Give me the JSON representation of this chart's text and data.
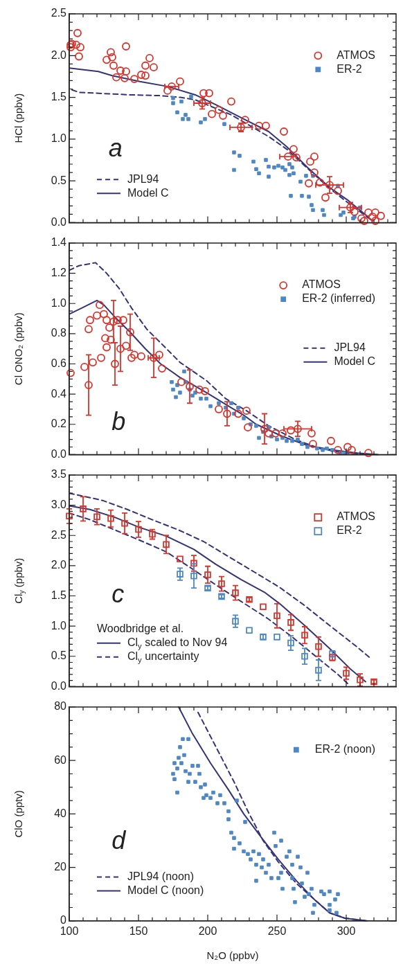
{
  "chart_data": [
    {
      "type": "scatter",
      "ylabel": "HCl (ppbv)",
      "xlim": [
        100,
        336
      ],
      "ylim": [
        0,
        2.5
      ],
      "tick_labels": "y",
      "legend": "bottom left",
      "annotations": [
        "a"
      ],
      "xticks": [
        100,
        {
          "value": 110,
          "label": null
        },
        {
          "value": 120,
          "label": null
        },
        {
          "value": 130,
          "label": null
        },
        {
          "value": 140,
          "label": null
        },
        150,
        {
          "value": 160,
          "label": null
        },
        {
          "value": 170,
          "label": null
        },
        {
          "value": 180,
          "label": null
        },
        {
          "value": 190,
          "label": null
        },
        200,
        {
          "value": 210,
          "label": null
        },
        {
          "value": 220,
          "label": null
        },
        {
          "value": 230,
          "label": null
        },
        {
          "value": 240,
          "label": null
        },
        250,
        {
          "value": 260,
          "label": null
        },
        {
          "value": 270,
          "label": null
        },
        {
          "value": 280,
          "label": null
        },
        {
          "value": 290,
          "label": null
        },
        300,
        {
          "value": 310,
          "label": null
        },
        {
          "value": 320,
          "label": null
        },
        {
          "value": 330,
          "label": null
        }
      ],
      "yticks": [
        {
          "value": 0,
          "label": "0.0"
        },
        {
          "value": 0.1,
          "label": null
        },
        {
          "value": 0.2,
          "label": null
        },
        {
          "value": 0.3,
          "label": null
        },
        {
          "value": 0.4,
          "label": null
        },
        0.5,
        {
          "value": 0.6,
          "label": null
        },
        {
          "value": 0.7,
          "label": null
        },
        {
          "value": 0.8,
          "label": null
        },
        {
          "value": 0.9,
          "label": null
        },
        {
          "value": 1,
          "label": "1.0"
        },
        {
          "value": 1.1,
          "label": null
        },
        {
          "value": 1.2,
          "label": null
        },
        {
          "value": 1.3,
          "label": null
        },
        {
          "value": 1.4,
          "label": null
        },
        1.5,
        {
          "value": 1.6,
          "label": null
        },
        {
          "value": 1.7,
          "label": null
        },
        {
          "value": 1.8,
          "label": null
        },
        {
          "value": 1.9,
          "label": null
        },
        {
          "value": 2,
          "label": "2.0"
        },
        {
          "value": 2.1,
          "label": null
        },
        {
          "value": 2.2,
          "label": null
        },
        {
          "value": 2.3,
          "label": null
        },
        {
          "value": 2.4,
          "label": null
        },
        2.5
      ],
      "series": [
        {
          "name": "ATMOS",
          "type": "scatter",
          "marker": "circle",
          "color": "#d9342b",
          "x": [
            101,
            102,
            106,
            105,
            108,
            107,
            101,
            127,
            130,
            131,
            132,
            134,
            137,
            140,
            141,
            141,
            147,
            152,
            155,
            155,
            158,
            161,
            171,
            174,
            180,
            196,
            197,
            201,
            203,
            208,
            211,
            217,
            224,
            227,
            237,
            242,
            255,
            258,
            262,
            264,
            274,
            277,
            273,
            277,
            281,
            285,
            288,
            294,
            303,
            306,
            311,
            316,
            321,
            321,
            325,
            319,
            313
          ],
          "values": [
            2.13,
            2.14,
            2.27,
            2.13,
            2.1,
            1.99,
            2.1,
            1.95,
            2.04,
            1.98,
            1.88,
            1.74,
            1.82,
            1.73,
            1.81,
            2.11,
            1.72,
            1.77,
            1.88,
            1.76,
            1.97,
            1.86,
            1.58,
            1.63,
            1.69,
            1.43,
            1.55,
            1.55,
            1.3,
            1.35,
            1.28,
            1.45,
            1.14,
            1.23,
            1.16,
            1.16,
            1.09,
            0.79,
            0.88,
            0.78,
            0.73,
            0.79,
            0.47,
            0.6,
            0.48,
            0.3,
            0.45,
            0.38,
            0.18,
            0.13,
            0.05,
            0.12,
            0.12,
            0.02,
            0.08,
            0.07,
            0.02
          ],
          "errors": [
            null,
            null,
            null,
            null,
            null,
            null,
            null,
            null,
            null,
            null,
            null,
            null,
            null,
            null,
            null,
            null,
            null,
            null,
            null,
            null,
            null,
            null,
            null,
            null,
            null,
            0.07,
            null,
            null,
            null,
            null,
            null,
            null,
            0.05,
            null,
            null,
            null,
            null,
            null,
            null,
            null,
            null,
            null,
            null,
            null,
            null,
            null,
            0.1,
            null,
            0.06,
            null,
            null,
            null,
            null,
            null,
            null,
            null,
            null
          ],
          "xerrors": [
            null,
            null,
            null,
            null,
            null,
            null,
            null,
            null,
            null,
            null,
            null,
            null,
            null,
            null,
            null,
            null,
            null,
            null,
            null,
            null,
            null,
            null,
            null,
            5,
            null,
            6,
            null,
            null,
            null,
            null,
            null,
            null,
            8,
            null,
            null,
            null,
            null,
            6,
            null,
            null,
            null,
            null,
            null,
            null,
            null,
            null,
            10,
            null,
            8,
            null,
            null,
            null,
            null,
            null,
            null,
            null,
            null
          ]
        },
        {
          "name": "ER-2",
          "type": "scatter",
          "marker": "square",
          "color": "#4d87c7",
          "x": [
            175,
            175,
            181,
            178,
            184,
            182,
            186,
            188,
            195,
            198,
            212,
            219,
            223,
            219,
            233,
            235,
            237,
            242,
            244,
            244,
            248,
            251,
            254,
            256,
            259,
            261,
            259,
            262,
            260,
            267,
            268,
            271,
            273,
            276,
            275,
            276,
            283,
            284,
            294,
            296,
            298,
            305,
            310,
            306
          ],
          "values": [
            1.49,
            1.43,
            1.45,
            1.32,
            1.29,
            1.24,
            1.24,
            1.51,
            1.2,
            1.24,
            1.18,
            0.84,
            0.8,
            0.63,
            0.73,
            0.64,
            0.59,
            0.75,
            0.55,
            0.67,
            0.66,
            0.68,
            0.66,
            0.63,
            0.7,
            0.66,
            0.57,
            0.59,
            0.32,
            0.49,
            0.32,
            0.56,
            0.31,
            0.56,
            0.21,
            0.15,
            0.15,
            0.09,
            0.44,
            0.09,
            0.12,
            0.05,
            0.18,
            0.07
          ]
        },
        {
          "name": "JPL94",
          "type": "line",
          "line_style": "dashed",
          "color": "#33337a",
          "x": [
            102,
            107,
            144,
            166,
            180,
            191,
            217,
            244,
            257,
            272,
            288,
            301,
            319
          ],
          "values": [
            1.59,
            1.56,
            1.53,
            1.52,
            1.5,
            1.47,
            1.29,
            1.03,
            0.88,
            0.65,
            0.41,
            0.24,
            0.02
          ]
        },
        {
          "name": "Model C",
          "type": "line",
          "line_style": "solid",
          "color": "#33337a",
          "x": [
            100,
            121,
            131,
            151,
            171,
            191,
            206,
            226,
            244,
            257,
            272,
            288,
            301,
            312,
            319
          ],
          "values": [
            1.85,
            1.81,
            1.76,
            1.69,
            1.63,
            1.53,
            1.41,
            1.24,
            1.09,
            0.91,
            0.66,
            0.42,
            0.27,
            0.12,
            0.02
          ]
        }
      ]
    },
    {
      "type": "scatter",
      "ylabel": "Cl ONO₂ (ppbv)",
      "xlim": [
        100,
        336
      ],
      "ylim": [
        0,
        1.4
      ],
      "tick_labels": "y",
      "legend": "right",
      "annotations": [
        "b"
      ],
      "xticks": [
        100,
        {
          "value": 110,
          "label": null
        },
        {
          "value": 120,
          "label": null
        },
        {
          "value": 130,
          "label": null
        },
        {
          "value": 140,
          "label": null
        },
        150,
        {
          "value": 160,
          "label": null
        },
        {
          "value": 170,
          "label": null
        },
        {
          "value": 180,
          "label": null
        },
        {
          "value": 190,
          "label": null
        },
        200,
        {
          "value": 210,
          "label": null
        },
        {
          "value": 220,
          "label": null
        },
        {
          "value": 230,
          "label": null
        },
        {
          "value": 240,
          "label": null
        },
        250,
        {
          "value": 260,
          "label": null
        },
        {
          "value": 270,
          "label": null
        },
        {
          "value": 280,
          "label": null
        },
        {
          "value": 290,
          "label": null
        },
        300,
        {
          "value": 310,
          "label": null
        },
        {
          "value": 320,
          "label": null
        },
        {
          "value": 330,
          "label": null
        }
      ],
      "yticks": [
        {
          "value": 0,
          "label": "0.0"
        },
        {
          "value": 0.05,
          "label": null
        },
        {
          "value": 0.1,
          "label": null
        },
        {
          "value": 0.15,
          "label": null
        },
        0.2,
        {
          "value": 0.25,
          "label": null
        },
        {
          "value": 0.3,
          "label": null
        },
        {
          "value": 0.35,
          "label": null
        },
        0.4,
        {
          "value": 0.45,
          "label": null
        },
        {
          "value": 0.5,
          "label": null
        },
        {
          "value": 0.55,
          "label": null
        },
        0.6,
        {
          "value": 0.65,
          "label": null
        },
        {
          "value": 0.7,
          "label": null
        },
        {
          "value": 0.75,
          "label": null
        },
        0.8,
        {
          "value": 0.85,
          "label": null
        },
        {
          "value": 0.9,
          "label": null
        },
        {
          "value": 0.95,
          "label": null
        },
        {
          "value": 1,
          "label": "1.0"
        },
        {
          "value": 1.05,
          "label": null
        },
        {
          "value": 1.1,
          "label": null
        },
        {
          "value": 1.15,
          "label": null
        },
        1.2,
        {
          "value": 1.25,
          "label": null
        },
        {
          "value": 1.3,
          "label": null
        },
        {
          "value": 1.35,
          "label": null
        },
        1.4
      ],
      "series": [
        {
          "name": "ATMOS",
          "type": "scatter",
          "marker": "circle",
          "color": "#d9342b",
          "x": [
            101,
            111,
            114,
            117,
            114,
            115,
            120,
            122,
            123,
            125,
            127,
            127,
            129,
            126,
            130,
            132,
            133,
            135,
            137,
            139,
            141,
            144,
            145,
            147,
            152,
            161,
            165,
            167,
            181,
            187,
            194,
            198,
            208,
            214,
            222,
            228,
            229,
            241,
            244,
            249,
            254,
            260,
            265,
            275,
            276,
            289,
            294,
            301,
            304,
            316
          ],
          "values": [
            0.54,
            0.58,
            0.46,
            0.61,
            0.83,
            0.89,
            0.92,
            0.99,
            0.64,
            0.93,
            0.89,
            0.71,
            0.84,
            0.77,
            0.76,
            0.88,
            0.6,
            0.89,
            0.7,
            0.89,
            0.72,
            0.81,
            0.64,
            0.66,
            0.65,
            0.64,
            0.66,
            0.57,
            0.48,
            0.45,
            0.43,
            0.42,
            0.3,
            0.27,
            0.27,
            0.29,
            0.18,
            0.17,
            0.14,
            0.14,
            0.14,
            0.16,
            0.17,
            0.14,
            0.07,
            0.09,
            0.03,
            0.05,
            0.03,
            0.01
          ],
          "errors": [
            null,
            null,
            0.2,
            null,
            null,
            null,
            null,
            null,
            null,
            null,
            null,
            null,
            null,
            null,
            null,
            0.14,
            0.14,
            null,
            0.15,
            null,
            null,
            0.12,
            null,
            null,
            null,
            0.13,
            null,
            null,
            null,
            0.11,
            null,
            null,
            null,
            0.08,
            null,
            null,
            null,
            0.1,
            null,
            null,
            null,
            null,
            0.05,
            null,
            null,
            null,
            null,
            null,
            null,
            null
          ],
          "xerrors": [
            null,
            null,
            null,
            null,
            null,
            null,
            null,
            null,
            null,
            null,
            null,
            null,
            null,
            null,
            null,
            null,
            null,
            null,
            null,
            null,
            null,
            null,
            null,
            null,
            null,
            4,
            null,
            null,
            null,
            null,
            null,
            null,
            null,
            null,
            null,
            null,
            null,
            null,
            null,
            null,
            null,
            null,
            10,
            null,
            null,
            null,
            null,
            null,
            null,
            null
          ]
        },
        {
          "name": "ER-2 (inferred)",
          "type": "scatter",
          "marker": "square",
          "color": "#4d87c7",
          "x": [
            174,
            175,
            177,
            178,
            180,
            183,
            184,
            187,
            189,
            191,
            195,
            199,
            202,
            208,
            213,
            217,
            219,
            222,
            226,
            231,
            235,
            237,
            240,
            244,
            246,
            250,
            254,
            257,
            261,
            265,
            268,
            272,
            279,
            283,
            286,
            290,
            296,
            299
          ],
          "values": [
            0.48,
            0.43,
            0.38,
            0.46,
            0.41,
            0.55,
            0.48,
            0.43,
            0.39,
            0.41,
            0.37,
            0.37,
            0.32,
            0.34,
            0.31,
            0.34,
            0.27,
            0.31,
            0.24,
            0.2,
            0.19,
            0.11,
            0.15,
            0.18,
            0.12,
            0.1,
            0.11,
            0.09,
            0.09,
            0.1,
            0.07,
            0.05,
            0.04,
            0.03,
            0.04,
            0.03,
            0.01,
            0.01
          ]
        },
        {
          "name": "JPL94",
          "type": "line",
          "line_style": "dashed",
          "color": "#33337a",
          "x": [
            100,
            107,
            119,
            127,
            136,
            145,
            156,
            167,
            180,
            199,
            213,
            228,
            244,
            263,
            281,
            299,
            321
          ],
          "values": [
            1.22,
            1.25,
            1.27,
            1.2,
            1.1,
            0.97,
            0.83,
            0.73,
            0.61,
            0.49,
            0.37,
            0.29,
            0.19,
            0.1,
            0.04,
            0.01,
            0.0
          ]
        },
        {
          "name": "Model C",
          "type": "line",
          "line_style": "solid",
          "color": "#33337a",
          "x": [
            100,
            109,
            120,
            125,
            134,
            144,
            155,
            166,
            180,
            199,
            217,
            226,
            235,
            254,
            272,
            290,
            308,
            323
          ],
          "values": [
            0.93,
            0.97,
            1.02,
            0.99,
            0.9,
            0.81,
            0.7,
            0.6,
            0.51,
            0.41,
            0.31,
            0.26,
            0.2,
            0.12,
            0.06,
            0.03,
            0.01,
            0.0
          ]
        }
      ]
    },
    {
      "type": "scatter",
      "ylabel": "Cl$_{y}$ (ppbv)",
      "xlim": [
        100,
        336
      ],
      "ylim": [
        0,
        3.5
      ],
      "tick_labels": "y",
      "legend": "bottom left",
      "legend_title": "Woodbridge et al.",
      "annotations": [
        "c"
      ],
      "xticks": [
        100,
        {
          "value": 110,
          "label": null
        },
        {
          "value": 120,
          "label": null
        },
        {
          "value": 130,
          "label": null
        },
        {
          "value": 140,
          "label": null
        },
        150,
        {
          "value": 160,
          "label": null
        },
        {
          "value": 170,
          "label": null
        },
        {
          "value": 180,
          "label": null
        },
        {
          "value": 190,
          "label": null
        },
        200,
        {
          "value": 210,
          "label": null
        },
        {
          "value": 220,
          "label": null
        },
        {
          "value": 230,
          "label": null
        },
        {
          "value": 240,
          "label": null
        },
        250,
        {
          "value": 260,
          "label": null
        },
        {
          "value": 270,
          "label": null
        },
        {
          "value": 280,
          "label": null
        },
        {
          "value": 290,
          "label": null
        },
        300,
        {
          "value": 310,
          "label": null
        },
        {
          "value": 320,
          "label": null
        },
        {
          "value": 330,
          "label": null
        }
      ],
      "yticks": [
        {
          "value": 0,
          "label": "0.0"
        },
        {
          "value": 0.1,
          "label": null
        },
        {
          "value": 0.2,
          "label": null
        },
        {
          "value": 0.3,
          "label": null
        },
        {
          "value": 0.4,
          "label": null
        },
        0.5,
        {
          "value": 0.6,
          "label": null
        },
        {
          "value": 0.7,
          "label": null
        },
        {
          "value": 0.8,
          "label": null
        },
        {
          "value": 0.9,
          "label": null
        },
        {
          "value": 1,
          "label": "1.0"
        },
        {
          "value": 1.1,
          "label": null
        },
        {
          "value": 1.2,
          "label": null
        },
        {
          "value": 1.3,
          "label": null
        },
        {
          "value": 1.4,
          "label": null
        },
        1.5,
        {
          "value": 1.6,
          "label": null
        },
        {
          "value": 1.7,
          "label": null
        },
        {
          "value": 1.8,
          "label": null
        },
        {
          "value": 1.9,
          "label": null
        },
        {
          "value": 2,
          "label": "2.0"
        },
        {
          "value": 2.1,
          "label": null
        },
        {
          "value": 2.2,
          "label": null
        },
        {
          "value": 2.3,
          "label": null
        },
        {
          "value": 2.4,
          "label": null
        },
        2.5,
        {
          "value": 2.6,
          "label": null
        },
        {
          "value": 2.7,
          "label": null
        },
        {
          "value": 2.8,
          "label": null
        },
        {
          "value": 2.9,
          "label": null
        },
        {
          "value": 3,
          "label": "3.0"
        },
        {
          "value": 3.1,
          "label": null
        },
        {
          "value": 3.2,
          "label": null
        },
        {
          "value": 3.3,
          "label": null
        },
        {
          "value": 3.4,
          "label": null
        },
        3.5
      ],
      "series": [
        {
          "name": "ATMOS",
          "type": "scatter",
          "marker": "square",
          "color": "#d9342b",
          "x": [
            100,
            110,
            120,
            130,
            140,
            150,
            160,
            170,
            180,
            190,
            200,
            210,
            220,
            230,
            240,
            250,
            260,
            270,
            280,
            290,
            300,
            310,
            320
          ],
          "values": [
            2.82,
            2.94,
            2.81,
            2.78,
            2.7,
            2.6,
            2.52,
            2.35,
            2.11,
            2.04,
            1.85,
            1.7,
            1.55,
            1.44,
            1.32,
            1.17,
            1.06,
            0.85,
            0.66,
            0.48,
            0.22,
            0.11,
            0.08
          ],
          "errors": [
            0.12,
            0.2,
            0.13,
            0.14,
            0.17,
            0.13,
            0.08,
            0.15,
            null,
            0.13,
            0.14,
            0.12,
            0.12,
            0.03,
            null,
            0.2,
            0.13,
            0.14,
            0.16,
            0.05,
            0.1,
            0.1,
            0.03
          ]
        },
        {
          "name": "ER-2",
          "type": "scatter",
          "marker": "square",
          "color": "#4d87c7",
          "x": [
            180,
            190,
            200,
            210,
            220,
            230,
            240,
            250,
            260,
            270,
            280,
            290
          ],
          "values": [
            1.86,
            1.83,
            1.63,
            1.49,
            1.08,
            0.93,
            0.82,
            0.82,
            0.72,
            0.5,
            0.27,
            0.54
          ],
          "errors": [
            0.1,
            0.2,
            0.03,
            0.03,
            0.1,
            null,
            0.04,
            null,
            0.12,
            0.13,
            0.17,
            0.05
          ]
        },
        {
          "name": "Cl$_{y}$ scaled to Nov 94",
          "type": "line",
          "line_style": "solid",
          "color": "#33337a",
          "x": [
            100,
            115,
            133,
            151,
            170,
            190,
            206,
            224,
            241,
            252,
            270,
            288,
            303,
            314
          ],
          "values": [
            2.99,
            2.93,
            2.8,
            2.63,
            2.49,
            2.27,
            2.02,
            1.77,
            1.56,
            1.37,
            1.01,
            0.63,
            0.29,
            0.08
          ]
        },
        {
          "name": "Cl$_{y}$ uncertainty",
          "type": "line",
          "line_style": "dashed",
          "color": "#33337a",
          "x": [
            100,
            124,
            142,
            160,
            179,
            197,
            215,
            234,
            252,
            270,
            288,
            307,
            318
          ],
          "values": [
            3.2,
            3.08,
            2.93,
            2.76,
            2.59,
            2.4,
            2.15,
            1.89,
            1.64,
            1.34,
            1.01,
            0.67,
            0.46
          ]
        },
        {
          "type": "line",
          "line_style": "dashed",
          "color": "#33337a",
          "x": [
            100,
            115,
            133,
            151,
            170,
            188,
            206,
            224,
            243,
            261,
            279,
            294,
            301
          ],
          "values": [
            2.87,
            2.76,
            2.59,
            2.42,
            2.23,
            1.96,
            1.68,
            1.41,
            1.13,
            0.82,
            0.48,
            0.2,
            0.05
          ]
        }
      ]
    },
    {
      "type": "scatter",
      "ylabel": "ClO (pptv)",
      "xlabel": "N₂O (ppbv)",
      "xlim": [
        100,
        336
      ],
      "ylim": [
        0,
        80
      ],
      "legend": "bottom left",
      "annotations": [
        "d"
      ],
      "xticks": [
        100,
        {
          "value": 110,
          "label": null
        },
        {
          "value": 120,
          "label": null
        },
        {
          "value": 130,
          "label": null
        },
        {
          "value": 140,
          "label": null
        },
        150,
        {
          "value": 160,
          "label": null
        },
        {
          "value": 170,
          "label": null
        },
        {
          "value": 180,
          "label": null
        },
        {
          "value": 190,
          "label": null
        },
        200,
        {
          "value": 210,
          "label": null
        },
        {
          "value": 220,
          "label": null
        },
        {
          "value": 230,
          "label": null
        },
        {
          "value": 240,
          "label": null
        },
        250,
        {
          "value": 260,
          "label": null
        },
        {
          "value": 270,
          "label": null
        },
        {
          "value": 280,
          "label": null
        },
        {
          "value": 290,
          "label": null
        },
        300,
        {
          "value": 310,
          "label": null
        },
        {
          "value": 320,
          "label": null
        },
        {
          "value": 330,
          "label": null
        }
      ],
      "yticks": [
        0,
        {
          "value": 5,
          "label": null
        },
        {
          "value": 10,
          "label": null
        },
        {
          "value": 15,
          "label": null
        },
        20,
        {
          "value": 25,
          "label": null
        },
        {
          "value": 30,
          "label": null
        },
        {
          "value": 35,
          "label": null
        },
        40,
        {
          "value": 45,
          "label": null
        },
        {
          "value": 50,
          "label": null
        },
        {
          "value": 55,
          "label": null
        },
        60,
        {
          "value": 65,
          "label": null
        },
        {
          "value": 70,
          "label": null
        },
        {
          "value": 75,
          "label": null
        },
        80
      ],
      "series": [
        {
          "name": "ER-2 (noon)",
          "type": "scatter",
          "marker": "square",
          "color": "#4d87c7",
          "x": [
            175,
            176,
            176,
            178,
            178,
            179,
            180,
            181,
            182,
            183,
            184,
            186,
            186,
            187,
            189,
            191,
            193,
            194,
            195,
            197,
            198,
            199,
            202,
            204,
            207,
            209,
            212,
            215,
            215,
            217,
            219,
            219,
            221,
            223,
            226,
            227,
            229,
            231,
            233,
            235,
            235,
            237,
            239,
            240,
            242,
            244,
            246,
            248,
            249,
            251,
            253,
            253,
            254,
            257,
            259,
            261,
            261,
            262,
            263,
            265,
            267,
            268,
            270,
            272,
            273,
            275,
            276,
            277,
            282,
            284,
            288,
            288,
            292,
            294,
            293,
            288
          ],
          "values": [
            55,
            59,
            53,
            48,
            57,
            61,
            65,
            59,
            68,
            62,
            56,
            68,
            52,
            55,
            58,
            52,
            58,
            55,
            50,
            46,
            51,
            47,
            46,
            48,
            44,
            47,
            44,
            41,
            38,
            33,
            31,
            27,
            45,
            29,
            26,
            37,
            25,
            23,
            26,
            21,
            15,
            25,
            20,
            23,
            18,
            21,
            16,
            33,
            28,
            16,
            30,
            18,
            12,
            24,
            26,
            21,
            16,
            12,
            7,
            24,
            20,
            14,
            9,
            18,
            10,
            12,
            3,
            6,
            11,
            10,
            11,
            6,
            8,
            10,
            3,
            4
          ]
        },
        {
          "name": "JPL94 (noon)",
          "type": "line",
          "line_style": "dashed",
          "color": "#33337a",
          "x": [
            193,
            206,
            219,
            229,
            240,
            251,
            264,
            277,
            288,
            299,
            315
          ],
          "values": [
            78,
            65,
            52,
            41,
            30,
            22,
            14,
            8,
            3,
            1,
            0
          ]
        },
        {
          "name": "Model C (noon)",
          "type": "line",
          "line_style": "solid",
          "color": "#33337a",
          "x": [
            179,
            189,
            202,
            215,
            226,
            239,
            251,
            264,
            277,
            288,
            299,
            315
          ],
          "values": [
            80,
            70,
            59,
            49,
            40,
            31,
            23,
            15,
            8,
            3,
            1,
            0
          ]
        }
      ]
    }
  ]
}
